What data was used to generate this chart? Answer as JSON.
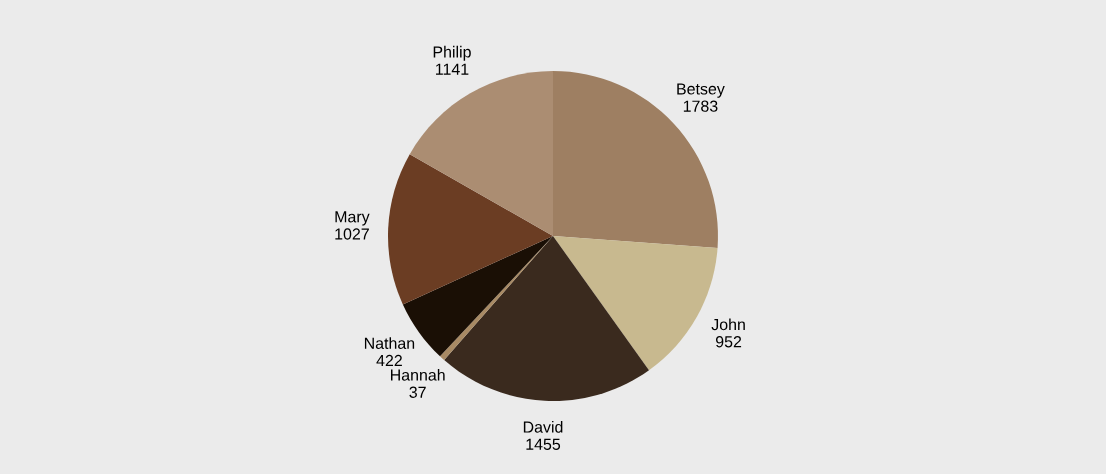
{
  "chart_data": {
    "type": "pie",
    "categories": [
      "Betsey",
      "John",
      "David",
      "Hannah",
      "Nathan",
      "Mary",
      "Philip"
    ],
    "values": [
      1783,
      952,
      1455,
      37,
      422,
      1027,
      1141
    ],
    "colors": [
      "#9e7f62",
      "#c8b98f",
      "#3a2a1e",
      "#a88a64",
      "#1a0f05",
      "#6b3d23",
      "#ab8d72"
    ],
    "data_labels": true
  }
}
